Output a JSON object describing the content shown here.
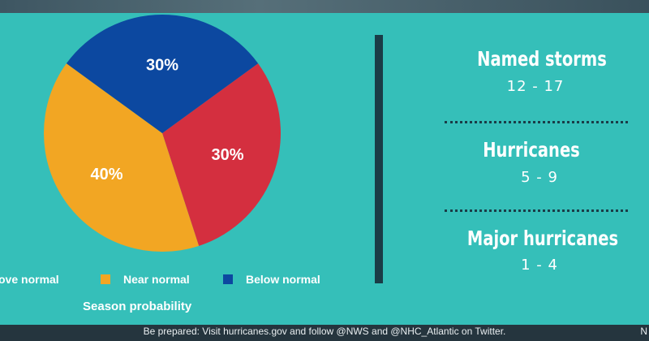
{
  "chart_data": {
    "type": "pie",
    "title": "",
    "xlabel": "Season probability",
    "categories": [
      "Above normal",
      "Near normal",
      "Below normal"
    ],
    "legend_labels": [
      "ove normal",
      "Near normal",
      "Below normal"
    ],
    "values": [
      30,
      40,
      30
    ],
    "data_labels": [
      "30%",
      "40%",
      "30%"
    ],
    "colors": [
      "#d42f3f",
      "#f2a623",
      "#0c48a0"
    ],
    "legend_position": "bottom"
  },
  "storm_stats": [
    {
      "title": "Named storms",
      "value": "12 - 17"
    },
    {
      "title": "Hurricanes",
      "value": "5 - 9"
    },
    {
      "title": "Major hurricanes",
      "value": "1 - 4"
    }
  ],
  "footer": {
    "text": "Be prepared: Visit hurricanes.gov and follow @NWS and @NHC_Atlantic on Twitter.",
    "edge": "N"
  }
}
